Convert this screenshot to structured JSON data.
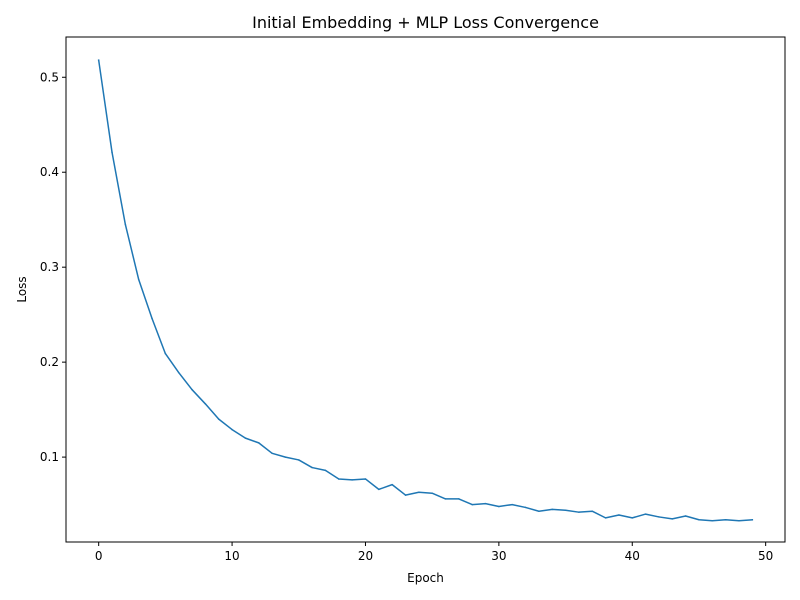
{
  "chart_data": {
    "type": "line",
    "title": "Initial Embedding + MLP Loss Convergence",
    "xlabel": "Epoch",
    "ylabel": "Loss",
    "xlim": [
      -2.45,
      51.45
    ],
    "ylim": [
      0.0106,
      0.5424
    ],
    "xticks": [
      0,
      10,
      20,
      30,
      40,
      50
    ],
    "yticks": [
      0.1,
      0.2,
      0.3,
      0.4,
      0.5
    ],
    "ytick_labels": [
      "0.1",
      "0.2",
      "0.3",
      "0.4",
      "0.5"
    ],
    "grid": false,
    "legend": "none",
    "series": [
      {
        "color": "#1f77b4",
        "x": [
          0,
          1,
          2,
          3,
          4,
          5,
          6,
          7,
          8,
          9,
          10,
          11,
          12,
          13,
          14,
          15,
          16,
          17,
          18,
          19,
          20,
          21,
          22,
          23,
          24,
          25,
          26,
          27,
          28,
          29,
          30,
          31,
          32,
          33,
          34,
          35,
          36,
          37,
          38,
          39,
          40,
          41,
          42,
          43,
          44,
          45,
          46,
          47,
          48,
          49
        ],
        "y": [
          0.518,
          0.421,
          0.345,
          0.287,
          0.246,
          0.209,
          0.189,
          0.171,
          0.156,
          0.14,
          0.129,
          0.12,
          0.115,
          0.104,
          0.1,
          0.097,
          0.089,
          0.086,
          0.077,
          0.076,
          0.077,
          0.066,
          0.071,
          0.06,
          0.063,
          0.062,
          0.056,
          0.056,
          0.05,
          0.051,
          0.048,
          0.05,
          0.047,
          0.043,
          0.045,
          0.044,
          0.042,
          0.043,
          0.036,
          0.039,
          0.036,
          0.04,
          0.037,
          0.035,
          0.038,
          0.034,
          0.033,
          0.034,
          0.033,
          0.034
        ]
      }
    ]
  }
}
